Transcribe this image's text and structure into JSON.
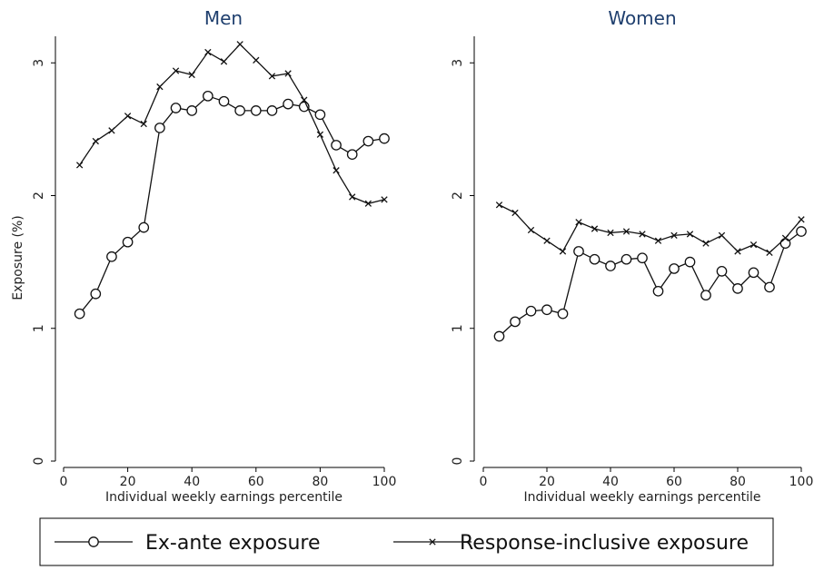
{
  "chart_data": [
    {
      "type": "line",
      "title": "Men",
      "xlabel": "Individual weekly earnings percentile",
      "ylabel": "Exposure (%)",
      "xlim": [
        0,
        100
      ],
      "ylim": [
        0,
        3.2
      ],
      "xticks": [
        "0",
        "20",
        "40",
        "60",
        "80",
        "100"
      ],
      "yticks": [
        "0",
        "1",
        "2",
        "3"
      ],
      "x": [
        5,
        10,
        15,
        20,
        25,
        30,
        35,
        40,
        45,
        50,
        55,
        60,
        65,
        70,
        75,
        80,
        85,
        90,
        95,
        100
      ],
      "series": [
        {
          "name": "Ex-ante exposure",
          "marker": "circle",
          "values": [
            1.11,
            1.26,
            1.54,
            1.65,
            1.76,
            2.51,
            2.66,
            2.64,
            2.75,
            2.71,
            2.64,
            2.64,
            2.64,
            2.69,
            2.67,
            2.61,
            2.38,
            2.31,
            2.41,
            2.43
          ]
        },
        {
          "name": "Response-inclusive exposure",
          "marker": "x",
          "values": [
            2.23,
            2.41,
            2.49,
            2.6,
            2.54,
            2.82,
            2.94,
            2.91,
            3.08,
            3.01,
            3.14,
            3.02,
            2.9,
            2.92,
            2.72,
            2.46,
            2.19,
            1.99,
            1.94,
            1.97
          ]
        }
      ]
    },
    {
      "type": "line",
      "title": "Women",
      "xlabel": "Individual weekly earnings percentile",
      "ylabel": "",
      "xlim": [
        0,
        100
      ],
      "ylim": [
        0,
        3.2
      ],
      "xticks": [
        "0",
        "20",
        "40",
        "60",
        "80",
        "100"
      ],
      "yticks": [
        "0",
        "1",
        "2",
        "3"
      ],
      "x": [
        5,
        10,
        15,
        20,
        25,
        30,
        35,
        40,
        45,
        50,
        55,
        60,
        65,
        70,
        75,
        80,
        85,
        90,
        95,
        100
      ],
      "series": [
        {
          "name": "Ex-ante exposure",
          "marker": "circle",
          "values": [
            0.94,
            1.05,
            1.13,
            1.14,
            1.11,
            1.58,
            1.52,
            1.47,
            1.52,
            1.53,
            1.28,
            1.45,
            1.5,
            1.25,
            1.43,
            1.3,
            1.42,
            1.31,
            1.64,
            1.73
          ]
        },
        {
          "name": "Response-inclusive exposure",
          "marker": "x",
          "values": [
            1.93,
            1.87,
            1.74,
            1.66,
            1.58,
            1.8,
            1.75,
            1.72,
            1.73,
            1.71,
            1.66,
            1.7,
            1.71,
            1.64,
            1.7,
            1.58,
            1.63,
            1.57,
            1.68,
            1.82
          ]
        }
      ]
    }
  ],
  "legend": {
    "position": "bottom",
    "items": [
      {
        "label": "Ex-ante exposure",
        "marker": "circle"
      },
      {
        "label": "Response-inclusive exposure",
        "marker": "x"
      }
    ]
  },
  "colors": {
    "title": "#1f3f6e",
    "line": "#111111",
    "axis": "#000000",
    "text": "#222222",
    "marker_fill": "#ffffff"
  }
}
